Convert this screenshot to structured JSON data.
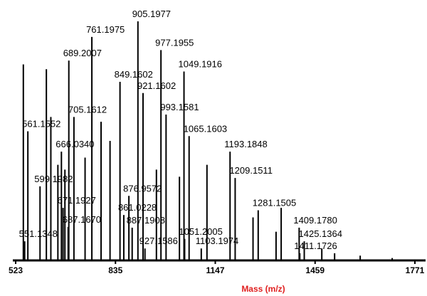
{
  "chart_data": {
    "type": "stem",
    "x_label": "Mass (m/z)",
    "xlim": [
      523,
      1771
    ],
    "xticks": [
      523,
      835,
      1147,
      1459,
      1771
    ],
    "ylim": [
      0,
      100
    ],
    "color": "#000000",
    "x": [
      905.1977,
      761.1975,
      689.2007,
      977.1955,
      849.1602,
      1049.1916,
      921.1602,
      705.1612,
      993.1581,
      561.1552,
      1065.1603,
      666.034,
      1193.1848,
      1209.1511,
      599.1982,
      876.9572,
      671.1927,
      1281.1505,
      861.0228,
      687.167,
      887.1908,
      1409.178,
      1051.2005,
      1425.1364,
      551.1348,
      927.1586,
      1103.1974,
      1411.1726,
      547,
      619,
      633,
      655,
      677,
      740,
      790,
      818,
      963,
      1035,
      1121,
      1265,
      1337,
      1353,
      1480,
      1520,
      1600,
      1700
    ],
    "values": [
      100,
      93.5,
      83.6,
      88,
      74.7,
      79,
      70,
      60,
      61,
      54,
      52,
      45.5,
      45.5,
      34.5,
      31,
      27,
      22,
      21,
      19,
      14,
      13.7,
      13.7,
      9,
      8,
      8,
      5,
      5,
      3,
      82,
      80,
      60,
      40,
      38,
      43,
      58,
      50,
      38,
      35,
      40,
      18,
      12,
      22,
      5,
      3,
      2,
      1
    ],
    "peak_labels": [
      "905.1977",
      "761.1975",
      "689.2007",
      "977.1955",
      "849.1602",
      "1049.1916",
      "921.1602",
      "705.1612",
      "993.1581",
      "561.1552",
      "1065.1603",
      "666.0340",
      "1193.1848",
      "1209.1511",
      "599.1982",
      "876.9572",
      "671.1927",
      "1281.1505",
      "861.0228",
      "687.1670",
      "887.1908",
      "1409.1780",
      "1051.2005",
      "1425.1364",
      "551.1348",
      "927.1586",
      "1103.1974",
      "1411.1726",
      null,
      null,
      null,
      null,
      null,
      null,
      null,
      null,
      null,
      null,
      null,
      null,
      null,
      null,
      null,
      null,
      null,
      null
    ]
  }
}
